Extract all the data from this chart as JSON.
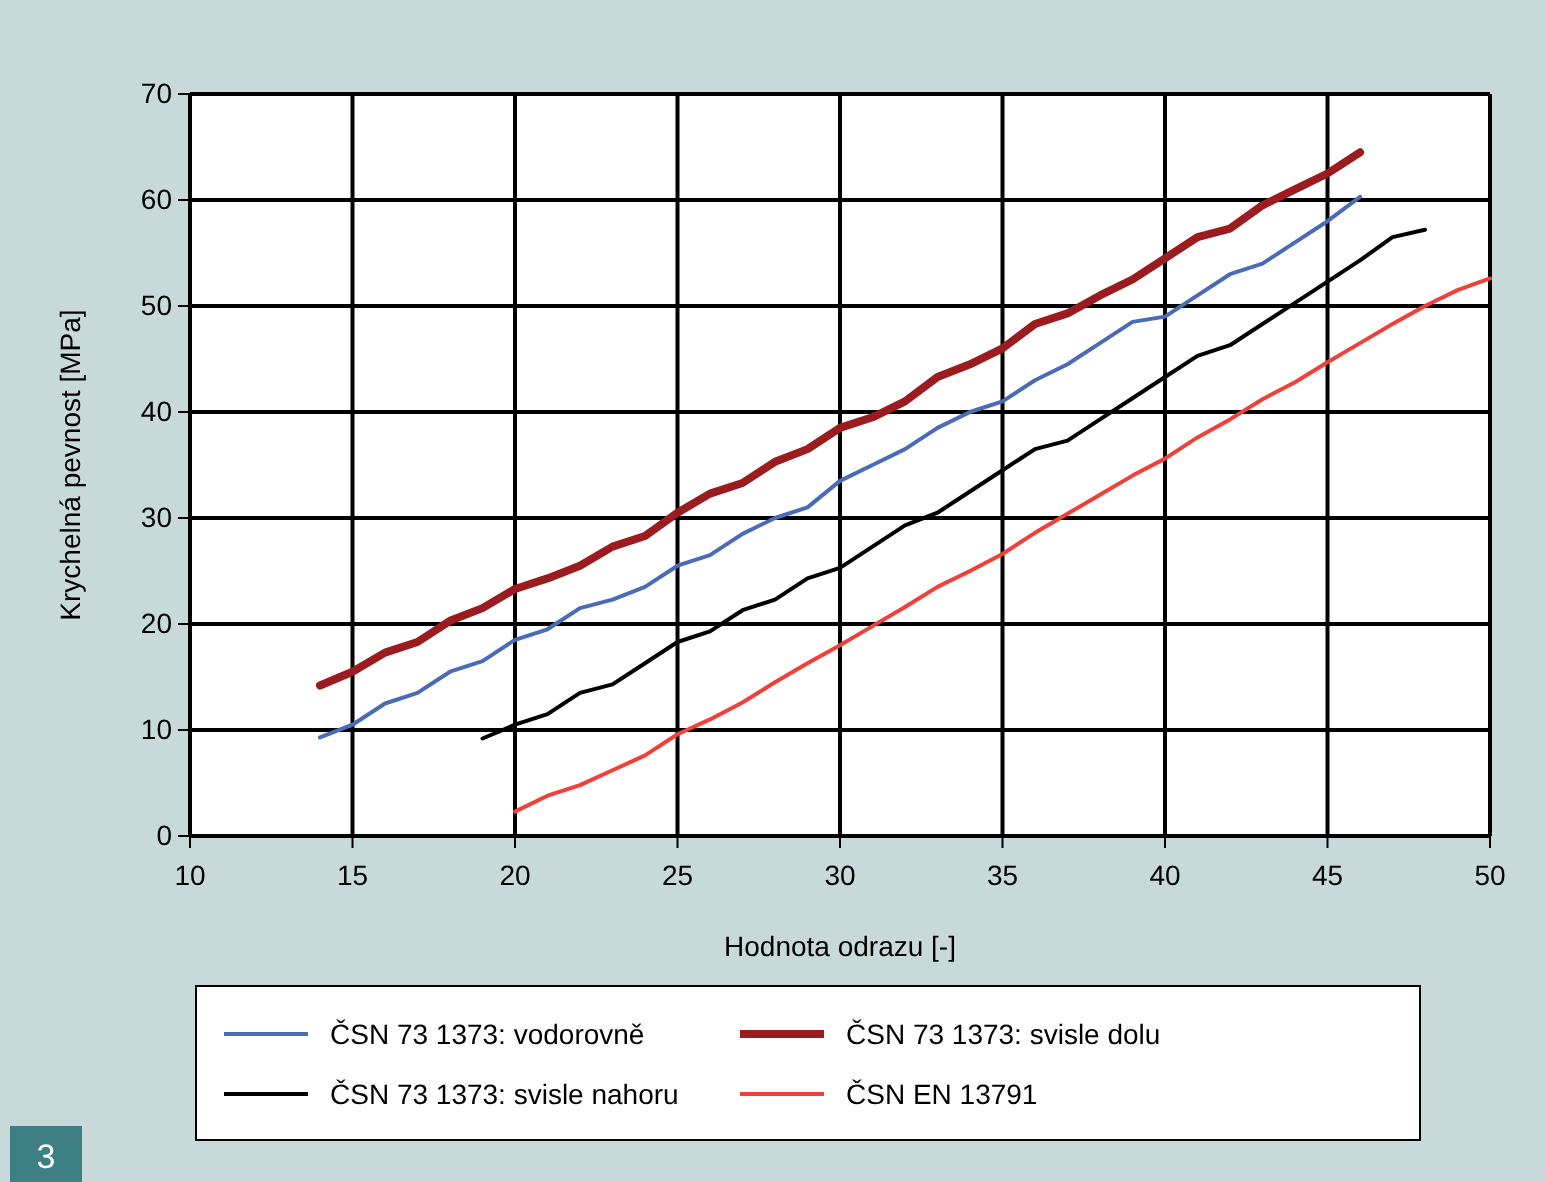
{
  "chart_data": {
    "type": "line",
    "xlabel": "Hodnota odrazu [-]",
    "ylabel": "Krychelná pevnost [MPa]",
    "xlim": [
      10,
      50
    ],
    "xticks": [
      10,
      15,
      20,
      25,
      30,
      35,
      40,
      45,
      50
    ],
    "ylim": [
      0,
      70
    ],
    "yticks": [
      0,
      10,
      20,
      30,
      40,
      50,
      60,
      70
    ],
    "grid": true,
    "legend": "bottom",
    "line_style": "solid",
    "annotations": [
      "3"
    ],
    "series": [
      {
        "name": "ČSN 73 1373: vodorovně",
        "color": "#4a6bb5",
        "x": [
          14,
          15,
          16,
          17,
          18,
          19,
          20,
          21,
          22,
          23,
          24,
          25,
          26,
          27,
          28,
          29,
          30,
          31,
          32,
          33,
          34,
          35,
          36,
          37,
          38,
          39,
          40,
          41,
          42,
          43,
          44,
          45,
          46
        ],
        "values": [
          9.3,
          10.5,
          12.5,
          13.5,
          15.5,
          16.5,
          18.5,
          19.5,
          21.5,
          22.3,
          23.5,
          25.5,
          26.5,
          28.5,
          30,
          31,
          33.5,
          35,
          36.5,
          38.5,
          40,
          41,
          43,
          44.5,
          46.5,
          48.5,
          49,
          51,
          53,
          54,
          56,
          58,
          60.3
        ]
      },
      {
        "name": "ČSN 73 1373: svisle dolu",
        "color": "#9b1c1f",
        "x": [
          14,
          15,
          16,
          17,
          18,
          19,
          20,
          21,
          22,
          23,
          24,
          25,
          26,
          27,
          28,
          29,
          30,
          31,
          32,
          33,
          34,
          35,
          36,
          37,
          38,
          39,
          40,
          41,
          42,
          43,
          44,
          45,
          46
        ],
        "values": [
          14.2,
          15.5,
          17.3,
          18.3,
          20.3,
          21.5,
          23.3,
          24.3,
          25.5,
          27.3,
          28.3,
          30.5,
          32.3,
          33.3,
          35.3,
          36.5,
          38.5,
          39.5,
          41,
          43.3,
          44.5,
          46,
          48.3,
          49.3,
          51,
          52.5,
          54.5,
          56.5,
          57.3,
          59.5,
          61,
          62.5,
          64.5
        ]
      },
      {
        "name": "ČSN 73 1373: svisle nahoru",
        "color": "#000000",
        "x": [
          19,
          20,
          21,
          22,
          23,
          24,
          25,
          26,
          27,
          28,
          29,
          30,
          31,
          32,
          33,
          34,
          35,
          36,
          37,
          38,
          39,
          40,
          41,
          42,
          43,
          44,
          45,
          46,
          47,
          48
        ],
        "values": [
          9.2,
          10.5,
          11.5,
          13.5,
          14.3,
          16.3,
          18.3,
          19.3,
          21.3,
          22.3,
          24.3,
          25.3,
          27.3,
          29.3,
          30.5,
          32.5,
          34.5,
          36.5,
          37.3,
          39.3,
          41.3,
          43.3,
          45.3,
          46.3,
          48.3,
          50.3,
          52.3,
          54.3,
          56.5,
          57.2
        ]
      },
      {
        "name": "ČSN EN 13791",
        "color": "#f0403a",
        "x": [
          20,
          21,
          22,
          23,
          24,
          25,
          26,
          27,
          28,
          29,
          30,
          31,
          32,
          33,
          34,
          35,
          36,
          37,
          38,
          39,
          40,
          41,
          42,
          43,
          44,
          45,
          46,
          47,
          48,
          49,
          50
        ],
        "values": [
          2.3,
          3.8,
          4.8,
          6.2,
          7.6,
          9.6,
          11,
          12.6,
          14.5,
          16.3,
          18,
          19.8,
          21.6,
          23.5,
          25,
          26.6,
          28.6,
          30.4,
          32.2,
          34,
          35.6,
          37.6,
          39.3,
          41.2,
          42.8,
          44.7,
          46.5,
          48.3,
          50,
          51.5,
          52.6
        ]
      }
    ]
  }
}
